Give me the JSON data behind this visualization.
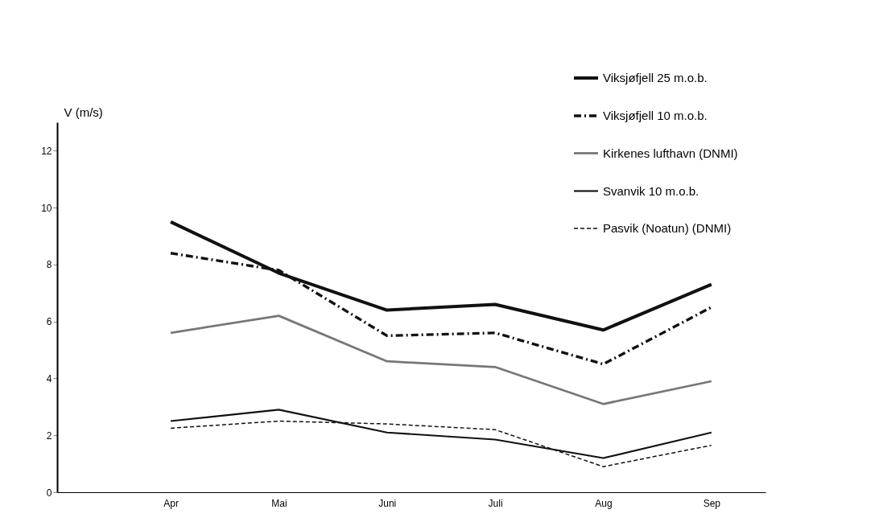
{
  "chart_data": {
    "type": "line",
    "ylabel": "V (m/s)",
    "categories": [
      "Apr",
      "Mai",
      "Juni",
      "Juli",
      "Aug",
      "Sep"
    ],
    "ylim": [
      0,
      13
    ],
    "yticks": [
      0,
      2,
      4,
      6,
      8,
      10,
      12
    ],
    "grid": false,
    "legend": "top right",
    "marker": "none",
    "series": [
      {
        "name": "Viksjøfjell 25 m.o.b.",
        "color": "#111111",
        "line_style": "solid",
        "values": [
          9.5,
          7.7,
          6.4,
          6.6,
          5.7,
          7.3
        ]
      },
      {
        "name": "Viksjøfjell 10 m.o.b.",
        "color": "#111111",
        "line_style": "dashdot",
        "values": [
          8.4,
          7.8,
          5.5,
          5.6,
          4.5,
          6.5
        ]
      },
      {
        "name": "Kirkenes lufthavn (DNMI)",
        "color": "#777777",
        "line_style": "solid",
        "values": [
          5.6,
          6.2,
          4.6,
          4.4,
          3.1,
          3.9
        ]
      },
      {
        "name": "Svanvik 10 m.o.b.",
        "color": "#111111",
        "line_style": "solid",
        "values": [
          2.5,
          2.9,
          2.1,
          1.85,
          1.2,
          2.1
        ]
      },
      {
        "name": "Pasvik (Noatun) (DNMI)",
        "color": "#111111",
        "line_style": "dashed",
        "values": [
          2.25,
          2.5,
          2.4,
          2.2,
          0.9,
          1.65
        ]
      }
    ]
  }
}
